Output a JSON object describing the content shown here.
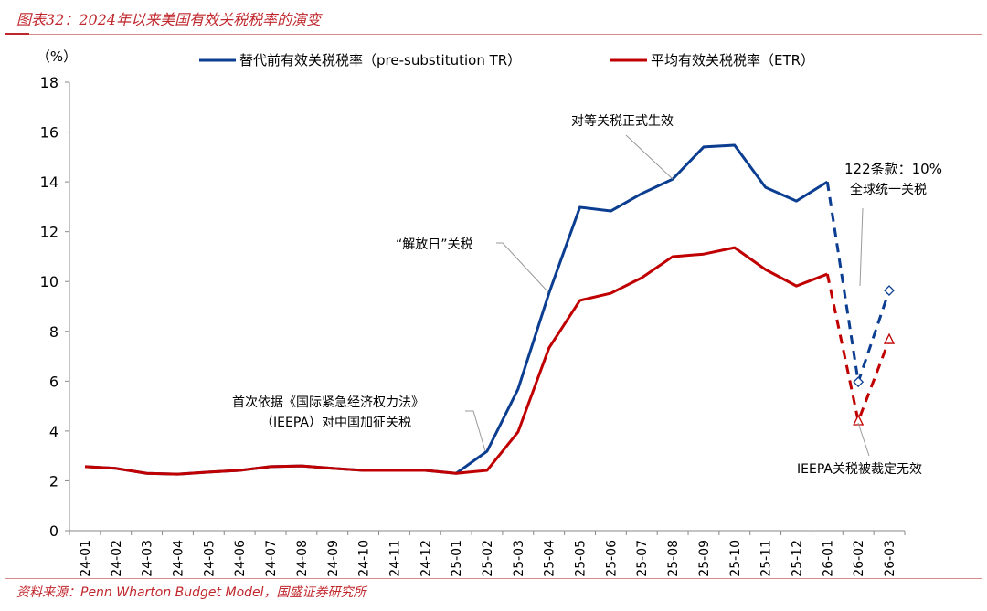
{
  "title": "图表32：2024年以来美国有效关税税率的演变",
  "source": "资料来源：Penn Wharton Budget Model，国盛证券研究所",
  "chart_data": {
    "type": "line",
    "ylabel": "（%）",
    "ylim": [
      0,
      18
    ],
    "yticks": [
      0,
      2,
      4,
      6,
      8,
      10,
      12,
      14,
      16,
      18
    ],
    "grid": false,
    "legend_position": "top",
    "categories": [
      "24-01",
      "24-02",
      "24-03",
      "24-04",
      "24-05",
      "24-06",
      "24-07",
      "24-08",
      "24-09",
      "24-10",
      "24-11",
      "24-12",
      "25-01",
      "25-02",
      "25-03",
      "25-04",
      "25-05",
      "25-06",
      "25-07",
      "25-08",
      "25-09",
      "25-10",
      "25-11",
      "25-12",
      "26-01",
      "26-02",
      "26-03"
    ],
    "series": [
      {
        "name": "替代前有效关税税率（pre-substitution TR）",
        "color": "#0b3d91",
        "values": [
          2.57,
          2.5,
          2.3,
          2.27,
          2.35,
          2.42,
          2.57,
          2.6,
          2.5,
          2.42,
          2.42,
          2.42,
          2.3,
          3.19,
          5.68,
          9.53,
          12.98,
          12.83,
          13.53,
          14.11,
          15.4,
          15.47,
          13.78,
          13.23,
          14.0,
          5.97,
          9.64
        ],
        "dashed_from": "26-01",
        "marker": "diamond"
      },
      {
        "name": "平均有效关税税率（ETR）",
        "color": "#c00000",
        "values": [
          2.57,
          2.5,
          2.3,
          2.27,
          2.35,
          2.42,
          2.57,
          2.6,
          2.5,
          2.42,
          2.42,
          2.42,
          2.3,
          2.42,
          3.96,
          7.33,
          9.24,
          9.53,
          10.15,
          11.0,
          11.1,
          11.36,
          10.48,
          9.82,
          10.3,
          4.4,
          7.66
        ],
        "dashed_from": "26-01",
        "marker": "triangle"
      }
    ],
    "annotations": [
      {
        "text": "对等关税正式生效",
        "category": "25-08"
      },
      {
        "text": "“解放日”关税",
        "category": "25-04"
      },
      {
        "text": "首次依据《国际紧急经济权力法》",
        "text2": "（IEEPA）对中国加征关税",
        "category": "25-02"
      },
      {
        "text": "122条款：10%",
        "text2": "全球统一关税",
        "category": "26-03"
      },
      {
        "text": "IEEPA关税被裁定无效",
        "category": "26-02"
      }
    ]
  }
}
